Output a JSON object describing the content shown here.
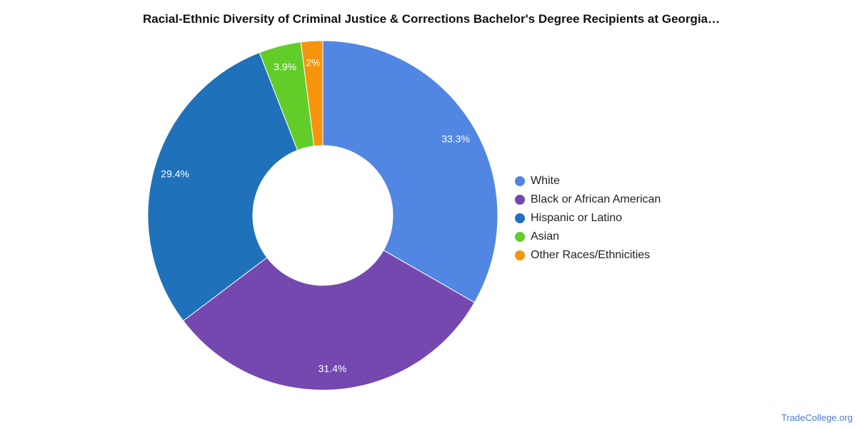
{
  "chart_data": {
    "type": "pie",
    "variant": "donut",
    "title": "Racial-Ethnic Diversity of Criminal Justice & Corrections Bachelor's Degree Recipients at Georgia…",
    "categories": [
      "White",
      "Black or African American",
      "Hispanic or Latino",
      "Asian",
      "Other Races/Ethnicities"
    ],
    "values": [
      33.3,
      31.4,
      29.4,
      3.9,
      2.0
    ],
    "data_labels": [
      "33.3%",
      "31.4%",
      "29.4%",
      "3.9%",
      "2%"
    ],
    "colors": [
      "#5286e3",
      "#7548b0",
      "#1f72ba",
      "#62cd28",
      "#f7940d"
    ],
    "legend_position": "right"
  },
  "credit": "TradeCollege.org"
}
